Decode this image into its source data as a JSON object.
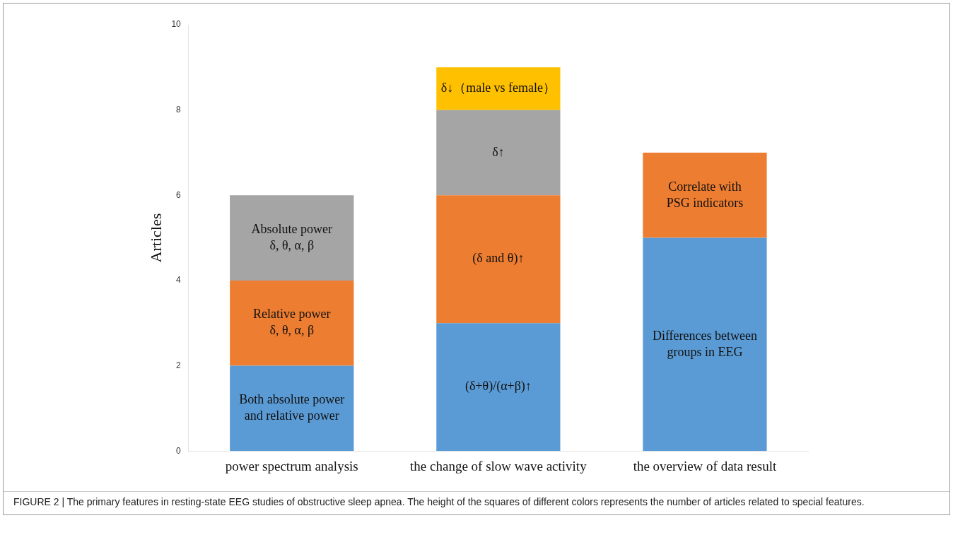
{
  "chart_data": {
    "type": "bar",
    "stacked": true,
    "ylabel": "Articles",
    "categories": [
      "power spectrum analysis",
      "the change of slow wave activity",
      "the overview of data result"
    ],
    "series": [
      {
        "color": "#5b9bd5",
        "values": [
          2,
          3,
          5
        ],
        "value_labels": [
          "Both absolute power\nand relative power",
          "(δ+θ)/(α+β)↑",
          "Differences between\ngroups in EEG"
        ]
      },
      {
        "color": "#ed7d31",
        "values": [
          2,
          3,
          2
        ],
        "value_labels": [
          "Relative power\nδ, θ, α, β",
          "(δ and θ)↑",
          "Correlate with\nPSG indicators"
        ]
      },
      {
        "color": "#a5a5a5",
        "values": [
          2,
          2,
          null
        ],
        "value_labels": [
          "Absolute power\nδ, θ, α, β",
          "δ↑",
          null
        ]
      },
      {
        "color": "#ffc000",
        "values": [
          null,
          1,
          null
        ],
        "value_labels": [
          null,
          "δ↓（male vs female）",
          null
        ]
      }
    ],
    "ylim": [
      0,
      10
    ],
    "yticks": [
      0,
      2,
      4,
      6,
      8,
      10
    ],
    "grid": false,
    "legend": false,
    "annotations": [
      "FIGURE 2 | The primary features in resting-state EEG studies of obstructive sleep apnea. The height of the squares of different colors represents the number of articles related to special features."
    ]
  }
}
